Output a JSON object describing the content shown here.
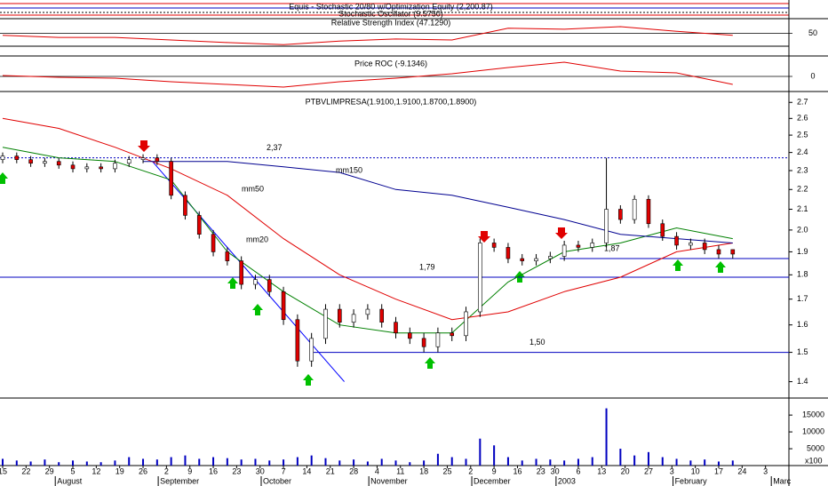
{
  "chart_data": {
    "type": "candlestick",
    "title": "PTBVLIMPRESA(1.9100,1.9100,1.8700,1.8900)",
    "headers": [
      "Equis - Stochastic 20/80 w/Optimization Equity (2,200.87)",
      "Stochastic Oscillator (9.5750)"
    ],
    "x": [
      0,
      3,
      6,
      9,
      12,
      15,
      18,
      21,
      24,
      27,
      30,
      33,
      36,
      39,
      42,
      45,
      48,
      51,
      54,
      57,
      60,
      63,
      66,
      69,
      72,
      75,
      78,
      81,
      84,
      87,
      90,
      93,
      96,
      99,
      102,
      105,
      108,
      111,
      114,
      117,
      120,
      123,
      126,
      129,
      132,
      135,
      138,
      141,
      144,
      147,
      150,
      153,
      156
    ],
    "open": [
      2.36,
      2.38,
      2.36,
      2.34,
      2.35,
      2.33,
      2.31,
      2.32,
      2.31,
      2.34,
      2.36,
      2.37,
      2.35,
      2.17,
      2.07,
      1.98,
      1.9,
      1.86,
      1.76,
      1.78,
      1.73,
      1.62,
      1.47,
      1.55,
      1.66,
      1.61,
      1.64,
      1.66,
      1.61,
      1.57,
      1.55,
      1.52,
      1.57,
      1.56,
      1.65,
      1.94,
      1.92,
      1.87,
      1.86,
      1.87,
      1.88,
      1.93,
      1.92,
      1.94,
      2.1,
      2.05,
      2.15,
      2.03,
      1.97,
      1.93,
      1.94,
      1.91,
      1.91
    ],
    "high": [
      2.4,
      2.4,
      2.38,
      2.37,
      2.37,
      2.35,
      2.34,
      2.34,
      2.36,
      2.38,
      2.39,
      2.39,
      2.37,
      2.19,
      2.09,
      2.0,
      1.92,
      1.88,
      1.8,
      1.8,
      1.75,
      1.64,
      1.57,
      1.68,
      1.68,
      1.66,
      1.68,
      1.68,
      1.63,
      1.59,
      1.57,
      1.59,
      1.59,
      1.67,
      1.96,
      1.96,
      1.94,
      1.89,
      1.89,
      1.9,
      1.95,
      1.95,
      1.96,
      2.37,
      2.12,
      2.17,
      2.17,
      2.05,
      1.99,
      1.96,
      1.96,
      1.93,
      1.91
    ],
    "low": [
      2.34,
      2.34,
      2.32,
      2.32,
      2.31,
      2.29,
      2.29,
      2.29,
      2.29,
      2.32,
      2.34,
      2.33,
      2.15,
      2.05,
      1.96,
      1.88,
      1.84,
      1.74,
      1.74,
      1.71,
      1.6,
      1.45,
      1.45,
      1.53,
      1.59,
      1.59,
      1.62,
      1.59,
      1.55,
      1.53,
      1.5,
      1.5,
      1.54,
      1.54,
      1.63,
      1.9,
      1.85,
      1.84,
      1.84,
      1.85,
      1.86,
      1.9,
      1.9,
      1.92,
      2.03,
      2.03,
      2.01,
      1.95,
      1.91,
      1.91,
      1.89,
      1.87,
      1.87
    ],
    "close": [
      2.38,
      2.36,
      2.34,
      2.35,
      2.33,
      2.31,
      2.32,
      2.31,
      2.34,
      2.36,
      2.37,
      2.35,
      2.17,
      2.07,
      1.98,
      1.9,
      1.86,
      1.76,
      1.78,
      1.73,
      1.62,
      1.47,
      1.55,
      1.66,
      1.61,
      1.64,
      1.66,
      1.61,
      1.57,
      1.55,
      1.52,
      1.57,
      1.56,
      1.65,
      1.94,
      1.92,
      1.87,
      1.86,
      1.87,
      1.88,
      1.93,
      1.92,
      1.94,
      2.1,
      2.05,
      2.15,
      2.03,
      1.97,
      1.93,
      1.94,
      1.91,
      1.89,
      1.89
    ],
    "up_color": "#ffffff",
    "down_color": "#e00000",
    "xlim": [
      0,
      168
    ],
    "xticks": [
      {
        "value": 0,
        "label": "15"
      },
      {
        "value": 5,
        "label": "22"
      },
      {
        "value": 10,
        "label": "29"
      },
      {
        "value": 15,
        "label": "5"
      },
      {
        "value": 20,
        "label": "12"
      },
      {
        "value": 25,
        "label": "19"
      },
      {
        "value": 30,
        "label": "26"
      },
      {
        "value": 35,
        "label": "2"
      },
      {
        "value": 40,
        "label": "9"
      },
      {
        "value": 45,
        "label": "16"
      },
      {
        "value": 50,
        "label": "23"
      },
      {
        "value": 55,
        "label": "30"
      },
      {
        "value": 60,
        "label": "7"
      },
      {
        "value": 65,
        "label": "14"
      },
      {
        "value": 70,
        "label": "21"
      },
      {
        "value": 75,
        "label": "28"
      },
      {
        "value": 80,
        "label": "4"
      },
      {
        "value": 85,
        "label": "11"
      },
      {
        "value": 90,
        "label": "18"
      },
      {
        "value": 95,
        "label": "25"
      },
      {
        "value": 100,
        "label": "2"
      },
      {
        "value": 105,
        "label": "9"
      },
      {
        "value": 110,
        "label": "16"
      },
      {
        "value": 115,
        "label": "23"
      },
      {
        "value": 118,
        "label": "30"
      },
      {
        "value": 123,
        "label": "6"
      },
      {
        "value": 128,
        "label": "13"
      },
      {
        "value": 133,
        "label": "20"
      },
      {
        "value": 138,
        "label": "27"
      },
      {
        "value": 143,
        "label": "3"
      },
      {
        "value": 148,
        "label": "10"
      },
      {
        "value": 153,
        "label": "17"
      },
      {
        "value": 158,
        "label": "24"
      },
      {
        "value": 163,
        "label": "3"
      }
    ],
    "months": [
      {
        "value": 12,
        "label": "August"
      },
      {
        "value": 34,
        "label": "September"
      },
      {
        "value": 56,
        "label": "October"
      },
      {
        "value": 79,
        "label": "November"
      },
      {
        "value": 101,
        "label": "December"
      },
      {
        "value": 119,
        "label": "2003"
      },
      {
        "value": 144,
        "label": "February"
      },
      {
        "value": 165,
        "label": "Marc"
      }
    ],
    "ylim": [
      1.35,
      2.77
    ],
    "log_scale": true,
    "yticks": [
      2.7,
      2.6,
      2.5,
      2.4,
      2.3,
      2.2,
      2.1,
      {
        "value": 2,
        "label": "2.0"
      },
      1.9,
      1.8,
      1.7,
      1.6,
      1.5,
      1.4
    ],
    "levels": [
      {
        "value": 2.37,
        "label": "2,37",
        "style": "dotted",
        "color": "#0000c0"
      },
      {
        "value": 1.87,
        "label": "1,87",
        "style": "solid",
        "color": "#0000c0"
      },
      {
        "value": 1.79,
        "label": "1,79",
        "style": "solid",
        "color": "#0000c0"
      },
      {
        "value": 1.5,
        "label": "1,50",
        "style": "solid",
        "color": "#0000c0"
      }
    ],
    "moving_averages": [
      {
        "name": "mm20",
        "color": "#008000",
        "x": [
          0,
          12,
          24,
          36,
          48,
          60,
          72,
          84,
          96,
          108,
          120,
          132,
          144,
          156
        ],
        "values": [
          2.43,
          2.37,
          2.35,
          2.25,
          1.9,
          1.73,
          1.6,
          1.57,
          1.57,
          1.77,
          1.9,
          1.94,
          2.01,
          1.96
        ]
      },
      {
        "name": "mm50",
        "color": "#e00000",
        "x": [
          0,
          12,
          24,
          36,
          48,
          60,
          72,
          84,
          96,
          108,
          120,
          132,
          144,
          156
        ],
        "values": [
          2.6,
          2.54,
          2.43,
          2.31,
          2.17,
          1.96,
          1.8,
          1.7,
          1.62,
          1.65,
          1.73,
          1.79,
          1.9,
          1.94
        ]
      },
      {
        "name": "mm150",
        "color": "#000090",
        "x": [
          30,
          36,
          48,
          60,
          72,
          84,
          96,
          108,
          120,
          132,
          144,
          156
        ],
        "values": [
          2.35,
          2.35,
          2.35,
          2.32,
          2.29,
          2.2,
          2.17,
          2.11,
          2.05,
          1.98,
          1.96,
          1.94
        ]
      }
    ],
    "trendline": {
      "color": "#0000ff",
      "x": [
        32,
        73
      ],
      "values": [
        2.35,
        1.4
      ]
    },
    "volume": {
      "label": "x100",
      "color": "#0000c0",
      "ylim": [
        0,
        19000
      ],
      "yticks": [
        15000,
        10000,
        5000
      ],
      "values": [
        2000,
        1500,
        1200,
        1800,
        1000,
        1500,
        1200,
        1000,
        1500,
        2500,
        2000,
        1800,
        2500,
        3000,
        2000,
        2500,
        2200,
        1800,
        2000,
        1500,
        1800,
        2500,
        3000,
        2200,
        1500,
        1800,
        1200,
        2000,
        1500,
        1000,
        1500,
        3500,
        2500,
        2000,
        8000,
        6000,
        2500,
        1500,
        2000,
        1800,
        1500,
        2000,
        2500,
        17000,
        5000,
        3000,
        4000,
        2500,
        2000,
        1500,
        1800,
        1200,
        1500
      ]
    },
    "indicators": [
      {
        "title": "Relative Strength Index (47.1290)",
        "color": "#e00000",
        "ylim": [
          25,
          75
        ],
        "yticks": [
          50
        ],
        "x": [
          0,
          12,
          24,
          36,
          48,
          60,
          72,
          84,
          96,
          108,
          120,
          132,
          144,
          156
        ],
        "values": [
          46,
          42,
          42,
          37,
          32,
          28,
          35,
          39,
          37,
          60,
          58,
          63,
          54,
          46
        ]
      },
      {
        "title": "Price ROC (-9.1346)",
        "color": "#e00000",
        "ylim": [
          -18,
          22
        ],
        "yticks": [
          0
        ],
        "x": [
          0,
          12,
          24,
          36,
          48,
          60,
          72,
          84,
          96,
          108,
          120,
          132,
          144,
          156
        ],
        "values": [
          1,
          -1,
          -2,
          -6,
          -9,
          -12,
          -6,
          -2,
          3,
          10,
          16,
          6,
          4,
          -9
        ]
      }
    ]
  }
}
